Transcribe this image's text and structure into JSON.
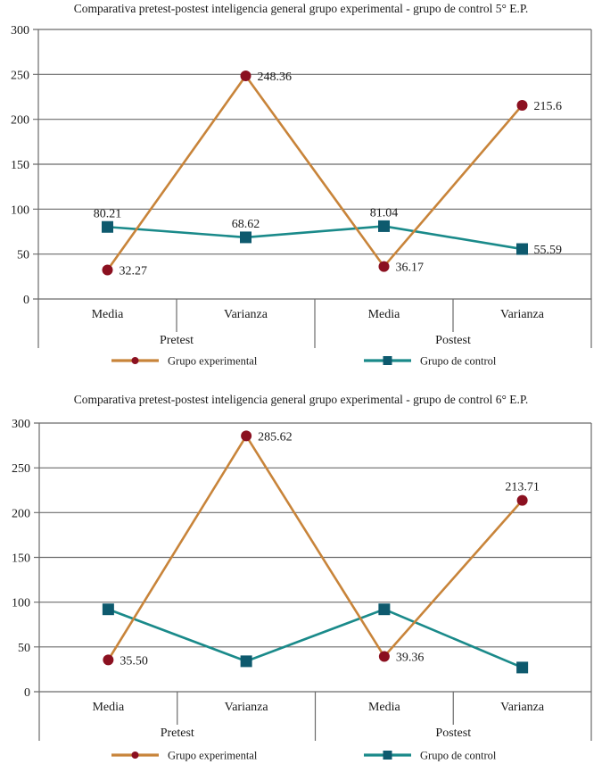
{
  "colors": {
    "experimental_line": "#C8843A",
    "experimental_marker": "#8B1020",
    "control_line": "#1A8A8A",
    "control_marker": "#0E5A6E",
    "grid": "#6b6b6b"
  },
  "chart_data": [
    {
      "type": "line",
      "title": "Comparativa pretest-postest inteligencia general grupo experimental - grupo de control 5° E.P.",
      "categories": [
        "Media",
        "Varianza",
        "Media",
        "Varianza"
      ],
      "groups": [
        {
          "label": "Pretest",
          "span": [
            0,
            1
          ]
        },
        {
          "label": "Postest",
          "span": [
            2,
            3
          ]
        }
      ],
      "ylim": [
        0,
        300
      ],
      "yticks": [
        "0",
        "50",
        "100",
        "150",
        "200",
        "250",
        "300"
      ],
      "grid": true,
      "legend": "bottom",
      "series": [
        {
          "name": "Grupo experimental",
          "marker": "circle",
          "values": [
            32.27,
            248.36,
            36.17,
            215.6
          ],
          "labels": [
            "32.27",
            "248.36",
            "36.17",
            "215.6"
          ],
          "label_pos": [
            "right",
            "right",
            "right",
            "right"
          ]
        },
        {
          "name": "Grupo de control",
          "marker": "square",
          "values": [
            80.21,
            68.62,
            81.04,
            55.59
          ],
          "labels": [
            "80.21",
            "68.62",
            "81.04",
            "55.59"
          ],
          "label_pos": [
            "above",
            "above",
            "above",
            "right"
          ]
        }
      ]
    },
    {
      "type": "line",
      "title": "Comparativa pretest-postest inteligencia general grupo experimental - grupo de control 6° E.P.",
      "categories": [
        "Media",
        "Varianza",
        "Media",
        "Varianza"
      ],
      "groups": [
        {
          "label": "Pretest",
          "span": [
            0,
            1
          ]
        },
        {
          "label": "Postest",
          "span": [
            2,
            3
          ]
        }
      ],
      "ylim": [
        0,
        300
      ],
      "yticks": [
        "0",
        "50",
        "100",
        "150",
        "200",
        "250",
        "300"
      ],
      "grid": true,
      "legend": "bottom",
      "series": [
        {
          "name": "Grupo experimental",
          "marker": "circle",
          "values": [
            35.5,
            285.62,
            39.36,
            213.71
          ],
          "labels": [
            "35.50",
            "285.62",
            "39.36",
            "213.71"
          ],
          "label_pos": [
            "right",
            "right",
            "right",
            "above"
          ]
        },
        {
          "name": "Grupo de control",
          "marker": "square",
          "values": [
            92,
            34,
            92,
            27
          ],
          "labels": [
            "",
            "",
            "",
            ""
          ],
          "label_pos": [
            "none",
            "none",
            "none",
            "none"
          ]
        }
      ]
    }
  ]
}
